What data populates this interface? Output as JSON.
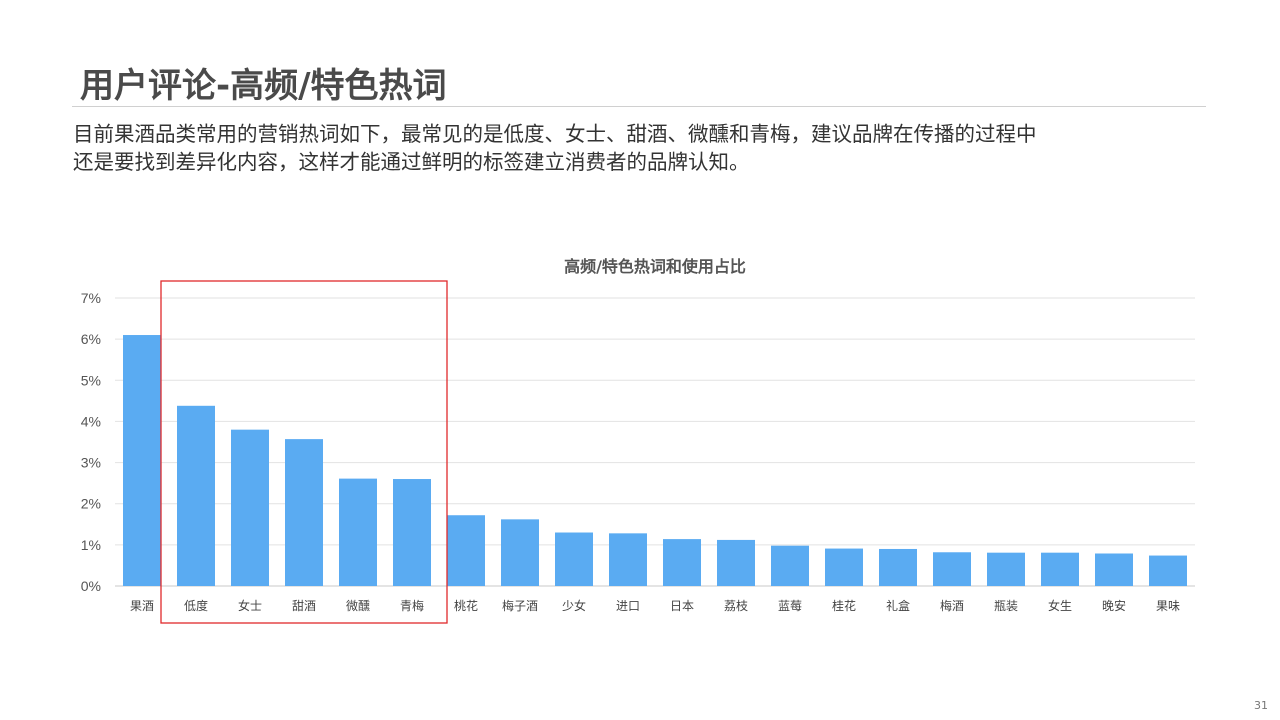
{
  "slide": {
    "title": "用户评论-高频/特色热词",
    "description_lines": [
      "目前果酒品类常用的营销热词如下，最常见的是低度、女士、甜酒、微醺和青梅，建议品牌在传播的过程中",
      "还是要找到差异化内容，这样才能通过鲜明的标签建立消费者的品牌认知。"
    ],
    "page_number": "31"
  },
  "chart_data": {
    "type": "bar",
    "title": "高频/特色热词和使用占比",
    "categories": [
      "果酒",
      "低度",
      "女士",
      "甜酒",
      "微醺",
      "青梅",
      "桃花",
      "梅子酒",
      "少女",
      "进口",
      "日本",
      "荔枝",
      "蓝莓",
      "桂花",
      "礼盒",
      "梅酒",
      "瓶装",
      "女生",
      "晚安",
      "果味"
    ],
    "values": [
      6.1,
      4.38,
      3.8,
      3.57,
      2.61,
      2.6,
      1.72,
      1.62,
      1.3,
      1.28,
      1.14,
      1.12,
      0.98,
      0.91,
      0.9,
      0.82,
      0.81,
      0.81,
      0.79,
      0.74
    ],
    "unit": "%",
    "ylim": [
      0,
      7
    ],
    "yticks": [
      0,
      1,
      2,
      3,
      4,
      5,
      6,
      7
    ],
    "ytick_labels": [
      "0%",
      "1%",
      "2%",
      "3%",
      "4%",
      "5%",
      "6%",
      "7%"
    ],
    "grid": true,
    "bar_color": "#5aabf2",
    "highlight": {
      "from_index": 1,
      "to_index": 5,
      "color": "#e0292b"
    }
  }
}
